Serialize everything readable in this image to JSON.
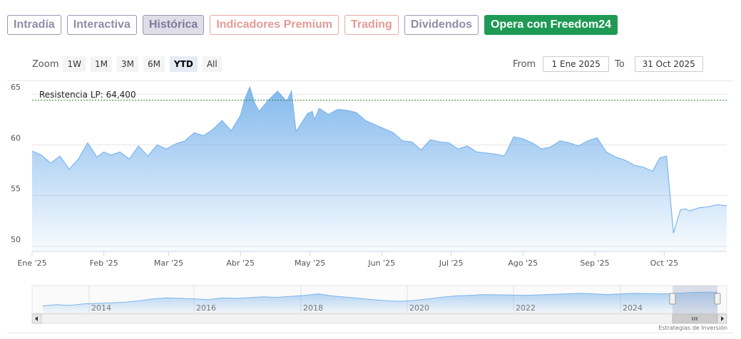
{
  "tabs": [
    {
      "label": "Intradía",
      "state": "normal"
    },
    {
      "label": "Interactiva",
      "state": "normal"
    },
    {
      "label": "Histórica",
      "state": "active"
    },
    {
      "label": "Indicadores Premium",
      "state": "premium"
    },
    {
      "label": "Trading",
      "state": "premium"
    },
    {
      "label": "Dividendos",
      "state": "normal"
    },
    {
      "label": "Opera con Freedom24",
      "state": "cta"
    }
  ],
  "zoom": {
    "label": "Zoom",
    "buttons": [
      "1W",
      "1M",
      "3M",
      "6M",
      "YTD",
      "All"
    ],
    "selected": "YTD"
  },
  "range": {
    "from_label": "From",
    "from_value": "1 Ene 2025",
    "to_label": "To",
    "to_value": "31 Oct 2025"
  },
  "colors": {
    "accent": "#1f9a55",
    "series_line": "#7cb5ec",
    "resistance_line": "#2e7d32"
  },
  "credit": "Estrategias de Inversión",
  "chart_data": {
    "type": "area",
    "title": "",
    "xlabel": "",
    "ylabel": "",
    "ylim": [
      49.5,
      66
    ],
    "y_ticks": [
      50,
      55,
      60,
      65
    ],
    "x_ticks": [
      {
        "label": "Ene '25",
        "day": 0
      },
      {
        "label": "Feb '25",
        "day": 31
      },
      {
        "label": "Mar '25",
        "day": 59
      },
      {
        "label": "Abr '25",
        "day": 90
      },
      {
        "label": "May '25",
        "day": 120
      },
      {
        "label": "Jun '25",
        "day": 151
      },
      {
        "label": "Jul '25",
        "day": 181
      },
      {
        "label": "Ago '25",
        "day": 212
      },
      {
        "label": "Sep '25",
        "day": 243
      },
      {
        "label": "Oct '25",
        "day": 273
      }
    ],
    "grid": true,
    "annotation": {
      "label": "Resistencia LP: 64,400",
      "value": 64.4
    },
    "series": [
      {
        "x": [
          0,
          4,
          8,
          12,
          16,
          20,
          24,
          28,
          31,
          34,
          38,
          42,
          46,
          50,
          54,
          58,
          62,
          66,
          70,
          74,
          78,
          82,
          86,
          90,
          92,
          94,
          96,
          98,
          102,
          106,
          110,
          112,
          114,
          117,
          119,
          121,
          122,
          124,
          128,
          132,
          136,
          140,
          144,
          148,
          152,
          156,
          160,
          164,
          168,
          172,
          176,
          180,
          184,
          188,
          192,
          196,
          200,
          204,
          208,
          212,
          216,
          220,
          224,
          228,
          232,
          236,
          240,
          244,
          248,
          252,
          256,
          260,
          264,
          268,
          271,
          274,
          277,
          280,
          282,
          284,
          288,
          292,
          296,
          300
        ],
        "y": [
          59.4,
          59.0,
          58.2,
          58.9,
          57.6,
          58.6,
          60.2,
          58.8,
          59.3,
          59.0,
          59.3,
          58.6,
          59.9,
          58.9,
          60.0,
          59.6,
          60.1,
          60.4,
          61.2,
          60.9,
          61.5,
          62.4,
          61.4,
          62.9,
          64.6,
          65.7,
          64.2,
          63.3,
          64.4,
          65.3,
          64.3,
          65.3,
          61.3,
          62.4,
          63.1,
          63.3,
          62.5,
          63.6,
          63.0,
          63.5,
          63.4,
          63.2,
          62.4,
          62.0,
          61.6,
          61.2,
          60.4,
          60.3,
          59.5,
          60.5,
          60.3,
          60.2,
          59.6,
          59.9,
          59.3,
          59.2,
          59.1,
          58.9,
          60.8,
          60.6,
          60.2,
          59.6,
          59.8,
          60.4,
          60.2,
          59.9,
          60.4,
          60.7,
          59.3,
          58.8,
          58.5,
          58.0,
          57.8,
          57.4,
          58.7,
          58.9,
          51.3,
          53.6,
          53.7,
          53.5,
          53.8,
          53.9,
          54.1,
          54.0
        ]
      }
    ]
  },
  "navigator": {
    "year_labels": [
      "2014",
      "2016",
      "2018",
      "2020",
      "2022",
      "2024"
    ],
    "profile": [
      0.3,
      0.35,
      0.32,
      0.38,
      0.4,
      0.42,
      0.45,
      0.5,
      0.58,
      0.62,
      0.6,
      0.58,
      0.55,
      0.62,
      0.6,
      0.63,
      0.66,
      0.64,
      0.68,
      0.72,
      0.78,
      0.7,
      0.65,
      0.6,
      0.55,
      0.5,
      0.48,
      0.52,
      0.58,
      0.65,
      0.7,
      0.72,
      0.75,
      0.74,
      0.73,
      0.72,
      0.74,
      0.76,
      0.78,
      0.8,
      0.78,
      0.75,
      0.78,
      0.8,
      0.79,
      0.78,
      0.8,
      0.83,
      0.85,
      0.84
    ]
  }
}
